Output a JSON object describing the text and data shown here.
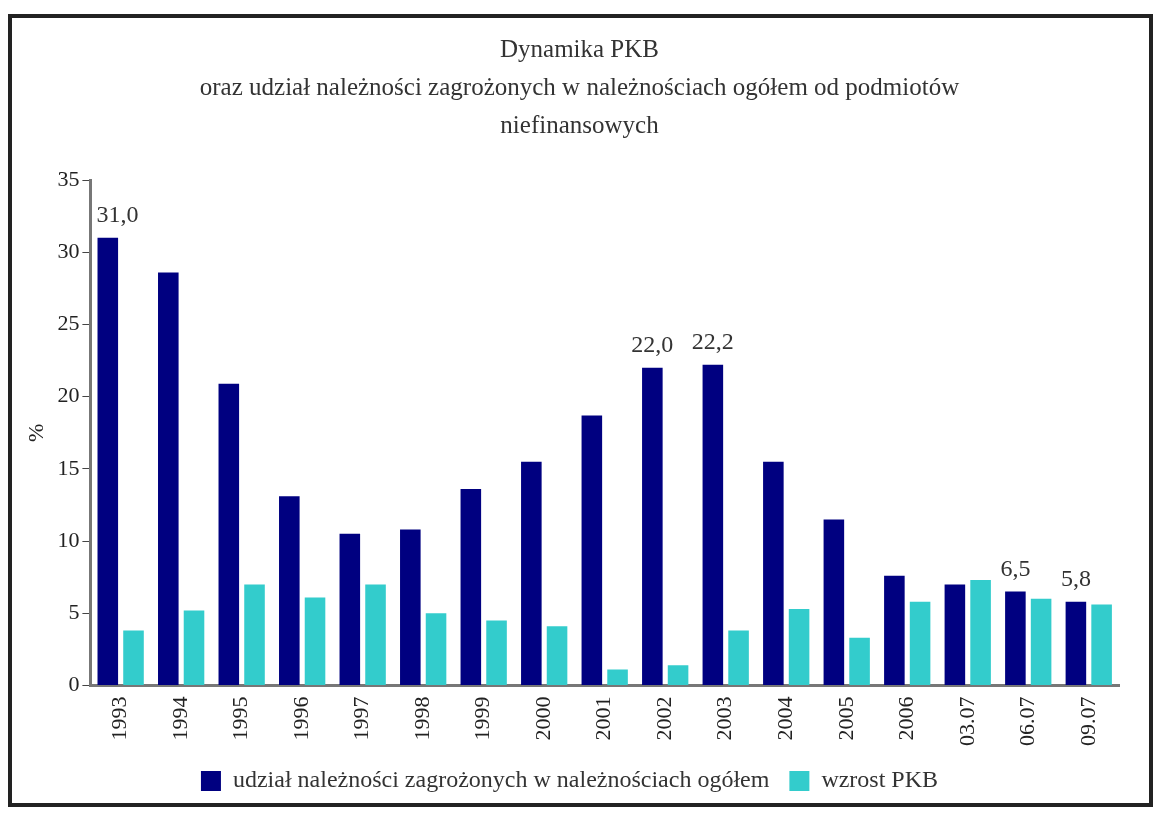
{
  "chart_data": {
    "type": "bar",
    "title": "Dynamika PKB",
    "subtitle": "oraz udział należności zagrożonych w należnościach ogółem od podmiotów niefinansowych",
    "ylabel": "%",
    "categories": [
      "1993",
      "1994",
      "1995",
      "1996",
      "1997",
      "1998",
      "1999",
      "2000",
      "2001",
      "2002",
      "2003",
      "2004",
      "2005",
      "2006",
      "03.07",
      "06.07",
      "09.07"
    ],
    "series": [
      {
        "name": "udział należności zagrożonych w należnościach ogółem",
        "color": "#000080",
        "values": [
          31.0,
          28.6,
          20.9,
          13.1,
          10.5,
          10.8,
          13.6,
          15.5,
          18.7,
          22.0,
          22.2,
          15.5,
          11.5,
          7.6,
          7.0,
          6.5,
          5.8
        ],
        "value_labels": [
          "31,0",
          null,
          null,
          null,
          null,
          null,
          null,
          null,
          null,
          "22,0",
          "22,2",
          null,
          null,
          null,
          null,
          "6,5",
          "5,8"
        ]
      },
      {
        "name": "wzrost PKB",
        "color": "#33cccc",
        "values": [
          3.8,
          5.2,
          7.0,
          6.1,
          7.0,
          5.0,
          4.5,
          4.1,
          1.1,
          1.4,
          3.8,
          5.3,
          3.3,
          5.8,
          7.3,
          6.0,
          5.6
        ]
      }
    ],
    "ylim": [
      0,
      35
    ],
    "yticks": [
      0,
      5,
      10,
      15,
      20,
      25,
      30,
      35
    ],
    "grid": false,
    "legend": "bottom"
  }
}
